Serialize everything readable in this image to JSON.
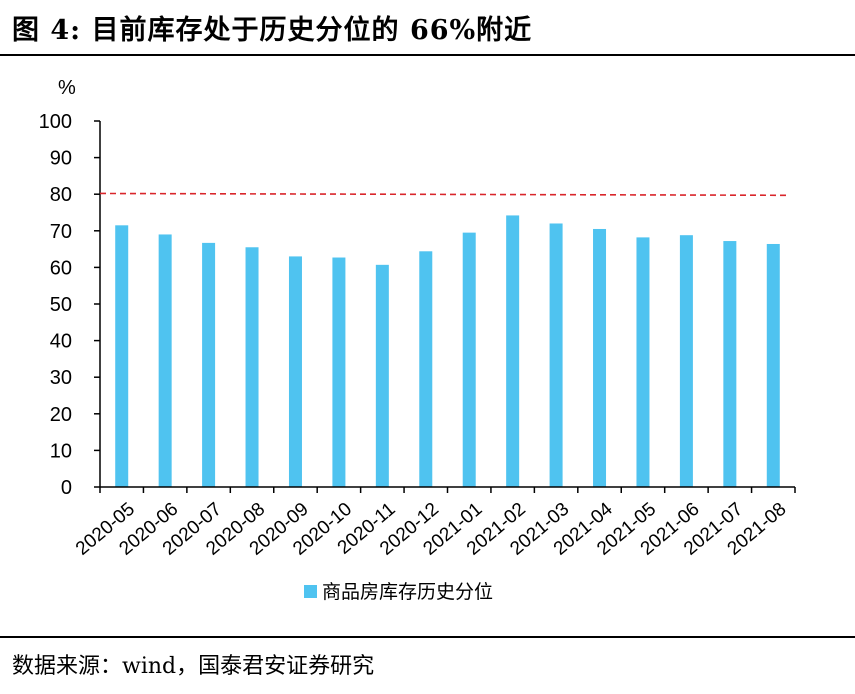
{
  "figure": {
    "title": "图 4: 目前库存处于历史分位的 66%附近",
    "source": "数据来源：wind，国泰君安证券研究"
  },
  "chart_data": {
    "type": "bar",
    "title": "",
    "ylabel": "%",
    "xlabel": "",
    "ylim": [
      0,
      100
    ],
    "yticks": [
      0,
      10,
      20,
      30,
      40,
      50,
      60,
      70,
      80,
      90,
      100
    ],
    "categories": [
      "2020-05",
      "2020-06",
      "2020-07",
      "2020-08",
      "2020-09",
      "2020-10",
      "2020-11",
      "2020-12",
      "2021-01",
      "2021-02",
      "2021-03",
      "2021-04",
      "2021-05",
      "2021-06",
      "2021-07",
      "2021-08"
    ],
    "series": [
      {
        "name": "商品房库存历史分位",
        "color": "#4FC3F0",
        "values": [
          71.5,
          69,
          66.7,
          65.5,
          63,
          62.7,
          60.7,
          64.4,
          69.5,
          74.2,
          72,
          70.5,
          68.2,
          68.8,
          67.2,
          66.4
        ]
      }
    ],
    "reference_line": {
      "start": 80.2,
      "end": 79.7,
      "color": "#d9262b",
      "style": "dashed"
    },
    "legend": "bottom-center"
  }
}
